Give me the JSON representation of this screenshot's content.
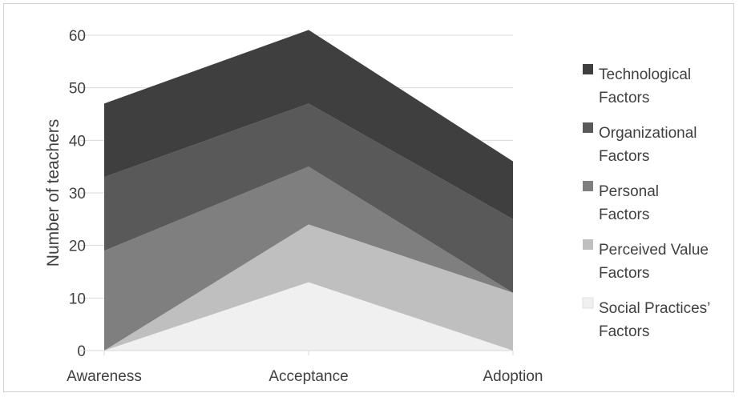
{
  "chart_data": {
    "type": "area",
    "stacked": true,
    "title": "",
    "xlabel": "",
    "ylabel": "Number of teachers",
    "categories": [
      "Awareness",
      "Acceptance",
      "Adoption"
    ],
    "ylim": [
      0,
      60
    ],
    "yticks": [
      0,
      10,
      20,
      30,
      40,
      50,
      60
    ],
    "grid": true,
    "legend_position": "right",
    "series": [
      {
        "name": "Social Practices’ Factors",
        "legend_lines": [
          "Social Practices’",
          "Factors"
        ],
        "values": [
          0,
          13,
          0
        ],
        "color": "#f0f0f0"
      },
      {
        "name": "Perceived Value Factors",
        "legend_lines": [
          "Perceived Value",
          "Factors"
        ],
        "values": [
          0,
          11,
          11
        ],
        "color": "#bfbfbf"
      },
      {
        "name": "Personal Factors",
        "legend_lines": [
          "Personal",
          "Factors"
        ],
        "values": [
          19,
          11,
          0
        ],
        "color": "#7f7f7f"
      },
      {
        "name": "Organizational Factors",
        "legend_lines": [
          "Organizational",
          "Factors"
        ],
        "values": [
          14,
          12,
          14
        ],
        "color": "#595959"
      },
      {
        "name": "Technological Factors",
        "legend_lines": [
          "Technological",
          "Factors"
        ],
        "values": [
          14,
          14,
          11
        ],
        "color": "#3f3f3f"
      }
    ]
  }
}
